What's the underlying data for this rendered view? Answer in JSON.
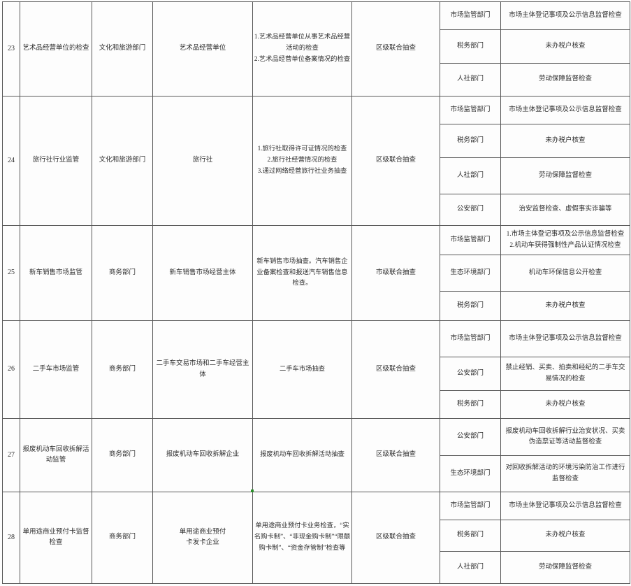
{
  "accents": {
    "border_color": "#595959",
    "green_marker_color": "#2a8f2a"
  },
  "table": {
    "rows": [
      {
        "no": "23",
        "item": "艺术品经营单位的检查",
        "lead_dept": "文化和旅游部门",
        "target": "艺术品经营单位",
        "content": "1.艺术品经营单位从事艺术品经营活动的检查\n2.艺术品经营单位备案情况的检查",
        "type": "区级联合抽查",
        "coops": [
          {
            "dept": "市场监管部门",
            "content": "市场主体登记事项及公示信息监督检查"
          },
          {
            "dept": "税务部门",
            "content": "未办税户核查"
          },
          {
            "dept": "人社部门",
            "content": "劳动保障监督检查"
          }
        ]
      },
      {
        "no": "24",
        "item": "旅行社行业监管",
        "lead_dept": "文化和旅游部门",
        "target": "旅行社",
        "content": "1.旅行社取得许可证情况的检查\n2.旅行社经营情况的检查\n3.通过网络经营旅行社业务抽查",
        "type": "区级联合抽查",
        "coops": [
          {
            "dept": "市场监管部门",
            "content": "市场主体登记事项及公示信息监督检查"
          },
          {
            "dept": "税务部门",
            "content": "未办税户核查"
          },
          {
            "dept": "人社部门",
            "content": "劳动保障监督检查"
          },
          {
            "dept": "公安部门",
            "content": "治安监督检查、虚假事实诈骗等"
          }
        ]
      },
      {
        "no": "25",
        "item": "新车销售市场监管",
        "lead_dept": "商务部门",
        "target": "新车销售市场经营主体",
        "content": "新车销售市场抽查。汽车销售企业备案检查和报送汽车销售信息检查。",
        "type": "市级联合抽查",
        "coops": [
          {
            "dept": "市场监管部门",
            "content": "1.市场主体登记事项及公示信息监督检查\n2.机动车获得强制性产品认证情况检查"
          },
          {
            "dept": "生态环境部门",
            "content": "机动车环保信息公开检查"
          },
          {
            "dept": "税务部门",
            "content": "未办税户核查"
          }
        ]
      },
      {
        "no": "26",
        "item": "二手车市场监管",
        "lead_dept": "商务部门",
        "target": "二手车交易市场和二手车经营主体",
        "content": "二手车市场抽查",
        "type": "区级联合抽查",
        "coops": [
          {
            "dept": "市场监管部门",
            "content": "市场主体登记事项及公示信息监督检查"
          },
          {
            "dept": "公安部门",
            "content": "禁止经销、买卖、拍卖和经纪的二手车交易情况的检查"
          },
          {
            "dept": "税务部门",
            "content": "未办税户核查"
          }
        ]
      },
      {
        "no": "27",
        "item": "报废机动车回收拆解活动监管",
        "lead_dept": "商务部门",
        "target": "报废机动车回收拆解企业",
        "content": "报废机动车回收拆解活动抽查",
        "type": "区级联合抽查",
        "coops": [
          {
            "dept": "公安部门",
            "content": "报废机动车回收拆解行业治安状况、买卖伪造票证等活动监督检查"
          },
          {
            "dept": "生态环境部门",
            "content": "对回收拆解活动的环境污染防治工作进行监督检查"
          }
        ]
      },
      {
        "no": "28",
        "item": "单用途商业预付卡监督检查",
        "lead_dept": "商务部门",
        "target": "单用途商业预付\n卡发卡企业",
        "content": "单用途商业预付卡业务检查，“实名购卡制”、“非现金购卡制”“限额购卡制”、“资金存管制”检查等",
        "type": "区级联合抽查",
        "coops": [
          {
            "dept": "市场监管部门",
            "content": "市场主体登记事项及公示信息监督检查"
          },
          {
            "dept": "税务部门",
            "content": "未办税户核查"
          },
          {
            "dept": "人社部门",
            "content": "劳动保障监督检查"
          }
        ]
      }
    ]
  }
}
